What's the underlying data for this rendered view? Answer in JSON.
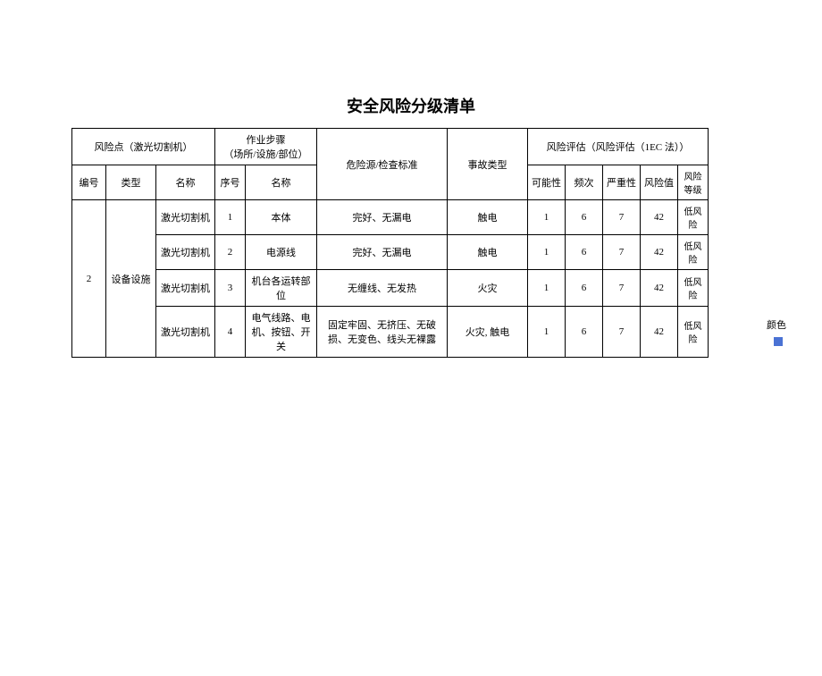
{
  "title": "安全风险分级清单",
  "headers": {
    "risk_point": "风险点（激光切割机）",
    "work_step": "作业步骤",
    "work_step_sub": "（场所/设施/部位）",
    "hazard": "危险源/检查标准",
    "accident": "事故类型",
    "assessment": "风险评估（风险评估（1EC 法））",
    "id": "编号",
    "type": "类型",
    "name": "名称",
    "seq": "序号",
    "step_name": "名称",
    "possibility": "可能性",
    "freq": "频次",
    "severity": "严重性",
    "value": "风险值",
    "level": "风险等级"
  },
  "group": {
    "id": "2",
    "type": "设备设施"
  },
  "rows": [
    {
      "name": "激光切割机",
      "seq": "1",
      "step": "本体",
      "hazard": "完好、无漏电",
      "accident": "触电",
      "possibility": "1",
      "freq": "6",
      "severity": "7",
      "value": "42",
      "level": "低风险"
    },
    {
      "name": "激光切割机",
      "seq": "2",
      "step": "电源线",
      "hazard": "完好、无漏电",
      "accident": "触电",
      "possibility": "1",
      "freq": "6",
      "severity": "7",
      "value": "42",
      "level": "低风险"
    },
    {
      "name": "激光切割机",
      "seq": "3",
      "step": "机台各运转部位",
      "hazard": "无缠线、无发热",
      "accident": "火灾",
      "possibility": "1",
      "freq": "6",
      "severity": "7",
      "value": "42",
      "level": "低风险"
    },
    {
      "name": "激光切割机",
      "seq": "4",
      "step": "电气线路、电机、按钮、开关",
      "hazard": "固定牢固、无挤压、无破损、无变色、线头无裸露",
      "accident": "火灾, 触电",
      "possibility": "1",
      "freq": "6",
      "severity": "7",
      "value": "42",
      "level": "低风险"
    }
  ],
  "side": {
    "color_label": "颜色",
    "swatch_color": "#4a72d4"
  }
}
